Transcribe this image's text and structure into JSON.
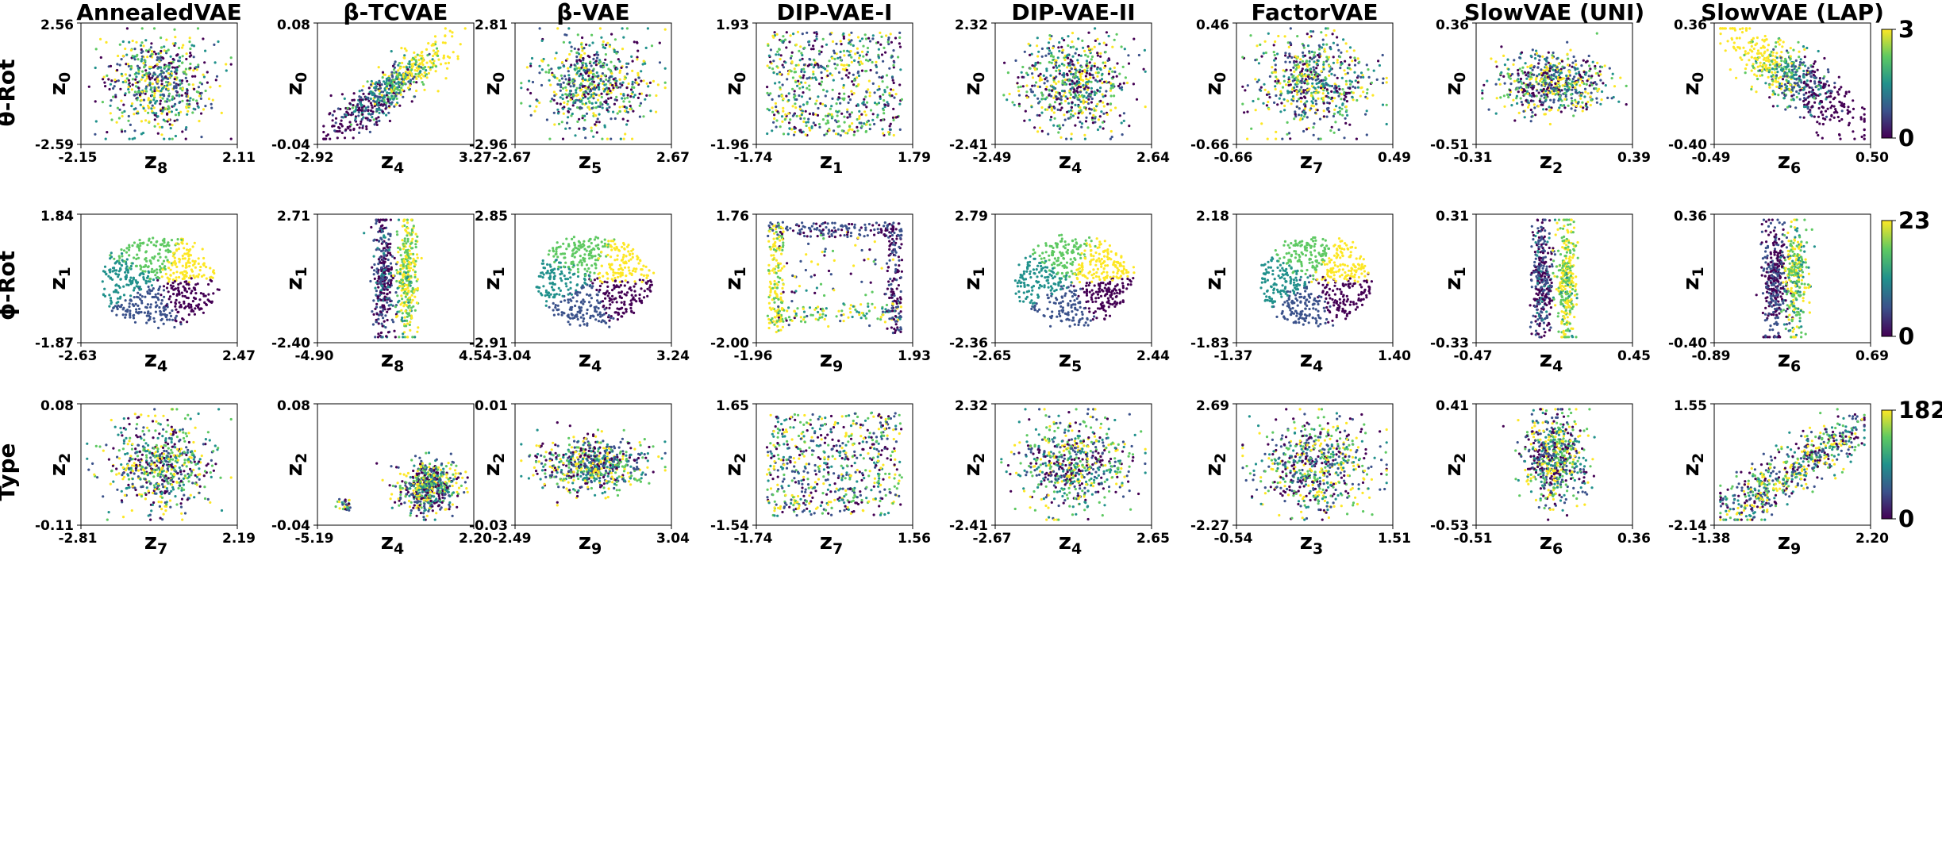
{
  "figure": {
    "columns": [
      "AnnealedVAE",
      "β-TCVAE",
      "β-VAE",
      "DIP-VAE-I",
      "DIP-VAE-II",
      "FactorVAE",
      "SlowVAE (UNI)",
      "SlowVAE (LAP)"
    ],
    "rows": [
      {
        "label": "θ-Rot",
        "colorbar": {
          "min": "0",
          "max": "3"
        }
      },
      {
        "label": "ϕ-Rot",
        "colorbar": {
          "min": "0",
          "max": "23"
        }
      },
      {
        "label": "Type",
        "colorbar": {
          "min": "0",
          "max": "182"
        }
      }
    ],
    "colormap": [
      "#440154",
      "#3b528b",
      "#21918c",
      "#5ec962",
      "#fde725"
    ]
  },
  "chart_data": [
    {
      "type": "scatter",
      "row": 0,
      "col": 0,
      "pattern": "blob",
      "x_label": "z",
      "x_sub": "8",
      "y_label": "z",
      "y_sub": "0",
      "xlim_labels": [
        "-2.15",
        "2.11"
      ],
      "ylim_labels": [
        "-2.59",
        "2.56"
      ]
    },
    {
      "type": "scatter",
      "row": 0,
      "col": 1,
      "pattern": "diag",
      "x_label": "z",
      "x_sub": "4",
      "y_label": "z",
      "y_sub": "0",
      "xlim_labels": [
        "-2.92",
        "3.27"
      ],
      "ylim_labels": [
        "-0.04",
        "0.08"
      ]
    },
    {
      "type": "scatter",
      "row": 0,
      "col": 2,
      "pattern": "blob",
      "x_label": "z",
      "x_sub": "5",
      "y_label": "z",
      "y_sub": "0",
      "xlim_labels": [
        "-2.67",
        "2.67"
      ],
      "ylim_labels": [
        "-2.96",
        "2.81"
      ]
    },
    {
      "type": "scatter",
      "row": 0,
      "col": 3,
      "pattern": "uniform",
      "x_label": "z",
      "x_sub": "1",
      "y_label": "z",
      "y_sub": "0",
      "xlim_labels": [
        "-1.74",
        "1.79"
      ],
      "ylim_labels": [
        "-1.96",
        "1.93"
      ]
    },
    {
      "type": "scatter",
      "row": 0,
      "col": 4,
      "pattern": "blob",
      "x_label": "z",
      "x_sub": "4",
      "y_label": "z",
      "y_sub": "0",
      "xlim_labels": [
        "-2.49",
        "2.64"
      ],
      "ylim_labels": [
        "-2.41",
        "2.32"
      ]
    },
    {
      "type": "scatter",
      "row": 0,
      "col": 5,
      "pattern": "blob",
      "x_label": "z",
      "x_sub": "7",
      "y_label": "z",
      "y_sub": "0",
      "xlim_labels": [
        "-0.66",
        "0.49"
      ],
      "ylim_labels": [
        "-0.66",
        "0.46"
      ]
    },
    {
      "type": "scatter",
      "row": 0,
      "col": 6,
      "pattern": "flat",
      "x_label": "z",
      "x_sub": "2",
      "y_label": "z",
      "y_sub": "0",
      "xlim_labels": [
        "-0.31",
        "0.39"
      ],
      "ylim_labels": [
        "-0.51",
        "0.36"
      ]
    },
    {
      "type": "scatter",
      "row": 0,
      "col": 7,
      "pattern": "tilt",
      "x_label": "z",
      "x_sub": "6",
      "y_label": "z",
      "y_sub": "0",
      "xlim_labels": [
        "-0.49",
        "0.50"
      ],
      "ylim_labels": [
        "-0.40",
        "0.36"
      ]
    },
    {
      "type": "scatter",
      "row": 1,
      "col": 0,
      "pattern": "ring",
      "x_label": "z",
      "x_sub": "4",
      "y_label": "z",
      "y_sub": "1",
      "xlim_labels": [
        "-2.63",
        "2.47"
      ],
      "ylim_labels": [
        "-1.87",
        "1.84"
      ]
    },
    {
      "type": "scatter",
      "row": 1,
      "col": 1,
      "pattern": "bars",
      "x_label": "z",
      "x_sub": "8",
      "y_label": "z",
      "y_sub": "1",
      "xlim_labels": [
        "-4.90",
        "4.54"
      ],
      "ylim_labels": [
        "-2.40",
        "2.71"
      ]
    },
    {
      "type": "scatter",
      "row": 1,
      "col": 2,
      "pattern": "ring",
      "x_label": "z",
      "x_sub": "4",
      "y_label": "z",
      "y_sub": "1",
      "xlim_labels": [
        "-3.04",
        "3.24"
      ],
      "ylim_labels": [
        "-2.91",
        "2.85"
      ]
    },
    {
      "type": "scatter",
      "row": 1,
      "col": 3,
      "pattern": "frame",
      "x_label": "z",
      "x_sub": "9",
      "y_label": "z",
      "y_sub": "1",
      "xlim_labels": [
        "-1.96",
        "1.93"
      ],
      "ylim_labels": [
        "-2.00",
        "1.76"
      ]
    },
    {
      "type": "scatter",
      "row": 1,
      "col": 4,
      "pattern": "ring",
      "x_label": "z",
      "x_sub": "5",
      "y_label": "z",
      "y_sub": "1",
      "xlim_labels": [
        "-2.65",
        "2.44"
      ],
      "ylim_labels": [
        "-2.36",
        "2.79"
      ]
    },
    {
      "type": "scatter",
      "row": 1,
      "col": 5,
      "pattern": "ring",
      "x_label": "z",
      "x_sub": "4",
      "y_label": "z",
      "y_sub": "1",
      "xlim_labels": [
        "-1.37",
        "1.40"
      ],
      "ylim_labels": [
        "-1.83",
        "2.18"
      ]
    },
    {
      "type": "scatter",
      "row": 1,
      "col": 6,
      "pattern": "bars",
      "x_label": "z",
      "x_sub": "4",
      "y_label": "z",
      "y_sub": "1",
      "xlim_labels": [
        "-0.47",
        "0.45"
      ],
      "ylim_labels": [
        "-0.33",
        "0.31"
      ]
    },
    {
      "type": "scatter",
      "row": 1,
      "col": 7,
      "pattern": "bars2",
      "x_label": "z",
      "x_sub": "6",
      "y_label": "z",
      "y_sub": "1",
      "xlim_labels": [
        "-0.89",
        "0.69"
      ],
      "ylim_labels": [
        "-0.40",
        "0.36"
      ]
    },
    {
      "type": "scatter",
      "row": 2,
      "col": 0,
      "pattern": "blob",
      "x_label": "z",
      "x_sub": "7",
      "y_label": "z",
      "y_sub": "2",
      "xlim_labels": [
        "-2.81",
        "2.19"
      ],
      "ylim_labels": [
        "-0.11",
        "0.08"
      ]
    },
    {
      "type": "scatter",
      "row": 2,
      "col": 1,
      "pattern": "corner",
      "x_label": "z",
      "x_sub": "4",
      "y_label": "z",
      "y_sub": "2",
      "xlim_labels": [
        "-5.19",
        "2.20"
      ],
      "ylim_labels": [
        "-0.04",
        "0.08"
      ]
    },
    {
      "type": "scatter",
      "row": 2,
      "col": 2,
      "pattern": "flat",
      "x_label": "z",
      "x_sub": "9",
      "y_label": "z",
      "y_sub": "2",
      "xlim_labels": [
        "-2.49",
        "3.04"
      ],
      "ylim_labels": [
        "-0.03",
        "0.01"
      ]
    },
    {
      "type": "scatter",
      "row": 2,
      "col": 3,
      "pattern": "uniform",
      "x_label": "z",
      "x_sub": "7",
      "y_label": "z",
      "y_sub": "2",
      "xlim_labels": [
        "-1.74",
        "1.56"
      ],
      "ylim_labels": [
        "-1.54",
        "1.65"
      ]
    },
    {
      "type": "scatter",
      "row": 2,
      "col": 4,
      "pattern": "blob",
      "x_label": "z",
      "x_sub": "4",
      "y_label": "z",
      "y_sub": "2",
      "xlim_labels": [
        "-2.67",
        "2.65"
      ],
      "ylim_labels": [
        "-2.41",
        "2.32"
      ]
    },
    {
      "type": "scatter",
      "row": 2,
      "col": 5,
      "pattern": "blob",
      "x_label": "z",
      "x_sub": "3",
      "y_label": "z",
      "y_sub": "2",
      "xlim_labels": [
        "-0.54",
        "1.51"
      ],
      "ylim_labels": [
        "-2.27",
        "2.69"
      ]
    },
    {
      "type": "scatter",
      "row": 2,
      "col": 6,
      "pattern": "vblob",
      "x_label": "z",
      "x_sub": "6",
      "y_label": "z",
      "y_sub": "2",
      "xlim_labels": [
        "-0.51",
        "0.36"
      ],
      "ylim_labels": [
        "-0.53",
        "0.41"
      ]
    },
    {
      "type": "scatter",
      "row": 2,
      "col": 7,
      "pattern": "diagwide",
      "x_label": "z",
      "x_sub": "9",
      "y_label": "z",
      "y_sub": "2",
      "xlim_labels": [
        "-1.38",
        "2.20"
      ],
      "ylim_labels": [
        "-2.14",
        "1.55"
      ]
    }
  ]
}
